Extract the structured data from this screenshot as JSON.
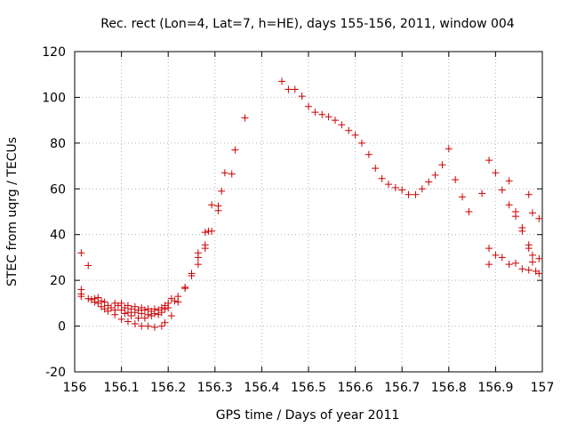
{
  "chart_data": {
    "type": "scatter",
    "title": "Rec. rect (Lon=4, Lat=7, h=HE), days 155-156, 2011, window 004",
    "xlabel": "GPS time / Days of year 2011",
    "ylabel": "STEC from uqrg / TECUs",
    "xlim": [
      156,
      157
    ],
    "ylim": [
      -20,
      120
    ],
    "x_ticks": [
      156,
      156.1,
      156.2,
      156.3,
      156.4,
      156.5,
      156.6,
      156.7,
      156.8,
      156.9,
      157
    ],
    "x_tick_labels": [
      "156",
      "156.1",
      "156.2",
      "156.3",
      "156.4",
      "156.5",
      "156.6",
      "156.7",
      "156.8",
      "156.9",
      "157"
    ],
    "y_ticks": [
      -20,
      0,
      20,
      40,
      60,
      80,
      100,
      120
    ],
    "y_tick_labels": [
      "-20",
      "0",
      "20",
      "40",
      "60",
      "80",
      "100",
      "120"
    ],
    "grid": true,
    "marker": "plus",
    "marker_color": "#cc0000",
    "points": [
      [
        156.014,
        32
      ],
      [
        156.014,
        16
      ],
      [
        156.014,
        14
      ],
      [
        156.014,
        13
      ],
      [
        156.029,
        26.5
      ],
      [
        156.029,
        12
      ],
      [
        156.036,
        11.5
      ],
      [
        156.043,
        12
      ],
      [
        156.043,
        10.5
      ],
      [
        156.05,
        12.5
      ],
      [
        156.05,
        10
      ],
      [
        156.057,
        11
      ],
      [
        156.057,
        8.5
      ],
      [
        156.064,
        10.5
      ],
      [
        156.064,
        7.5
      ],
      [
        156.071,
        9
      ],
      [
        156.071,
        6.5
      ],
      [
        156.078,
        8
      ],
      [
        156.086,
        10
      ],
      [
        156.086,
        7
      ],
      [
        156.086,
        5
      ],
      [
        156.093,
        9
      ],
      [
        156.1,
        10
      ],
      [
        156.1,
        7
      ],
      [
        156.1,
        3
      ],
      [
        156.107,
        8
      ],
      [
        156.107,
        5.5
      ],
      [
        156.114,
        9
      ],
      [
        156.114,
        6
      ],
      [
        156.114,
        2
      ],
      [
        156.121,
        7.5
      ],
      [
        156.121,
        4.5
      ],
      [
        156.129,
        8.5
      ],
      [
        156.129,
        6
      ],
      [
        156.129,
        1
      ],
      [
        156.136,
        7
      ],
      [
        156.136,
        3.5
      ],
      [
        156.143,
        8
      ],
      [
        156.143,
        5.5
      ],
      [
        156.143,
        0
      ],
      [
        156.15,
        7
      ],
      [
        156.15,
        3.5
      ],
      [
        156.157,
        7.5
      ],
      [
        156.157,
        5
      ],
      [
        156.157,
        0
      ],
      [
        156.164,
        6.5
      ],
      [
        156.164,
        4.5
      ],
      [
        156.171,
        7.5
      ],
      [
        156.171,
        5.5
      ],
      [
        156.171,
        -0.5
      ],
      [
        156.179,
        7
      ],
      [
        156.179,
        5
      ],
      [
        156.186,
        8
      ],
      [
        156.186,
        6
      ],
      [
        156.186,
        0
      ],
      [
        156.193,
        9
      ],
      [
        156.193,
        7.5
      ],
      [
        156.193,
        1.5
      ],
      [
        156.2,
        10
      ],
      [
        156.2,
        8
      ],
      [
        156.207,
        12
      ],
      [
        156.207,
        4.5
      ],
      [
        156.214,
        11
      ],
      [
        156.221,
        13
      ],
      [
        156.221,
        10.5
      ],
      [
        156.236,
        16.5
      ],
      [
        156.236,
        17
      ],
      [
        156.25,
        23
      ],
      [
        156.25,
        22
      ],
      [
        156.264,
        27
      ],
      [
        156.264,
        30
      ],
      [
        156.264,
        32
      ],
      [
        156.279,
        34
      ],
      [
        156.279,
        35.5
      ],
      [
        156.279,
        41
      ],
      [
        156.286,
        41.5
      ],
      [
        156.293,
        41.5
      ],
      [
        156.293,
        53
      ],
      [
        156.307,
        50.5
      ],
      [
        156.307,
        52.5
      ],
      [
        156.314,
        59
      ],
      [
        156.321,
        67
      ],
      [
        156.336,
        66.5
      ],
      [
        156.343,
        77
      ],
      [
        156.364,
        91
      ],
      [
        156.443,
        107
      ],
      [
        156.457,
        103.5
      ],
      [
        156.471,
        103.5
      ],
      [
        156.486,
        100.5
      ],
      [
        156.5,
        96
      ],
      [
        156.514,
        93.5
      ],
      [
        156.529,
        92.5
      ],
      [
        156.543,
        91.5
      ],
      [
        156.557,
        90
      ],
      [
        156.571,
        88
      ],
      [
        156.586,
        85.5
      ],
      [
        156.6,
        83.5
      ],
      [
        156.614,
        80
      ],
      [
        156.629,
        75
      ],
      [
        156.643,
        69
      ],
      [
        156.657,
        64.5
      ],
      [
        156.671,
        62
      ],
      [
        156.686,
        60.5
      ],
      [
        156.7,
        59.5
      ],
      [
        156.714,
        57.5
      ],
      [
        156.729,
        57.5
      ],
      [
        156.743,
        60
      ],
      [
        156.757,
        63
      ],
      [
        156.771,
        66
      ],
      [
        156.786,
        70.5
      ],
      [
        156.8,
        77.5
      ],
      [
        156.814,
        64
      ],
      [
        156.829,
        56.5
      ],
      [
        156.843,
        50
      ],
      [
        156.871,
        58
      ],
      [
        156.886,
        72.5
      ],
      [
        156.886,
        34
      ],
      [
        156.886,
        27
      ],
      [
        156.9,
        67
      ],
      [
        156.9,
        31
      ],
      [
        156.914,
        59.5
      ],
      [
        156.914,
        30
      ],
      [
        156.929,
        63.5
      ],
      [
        156.929,
        53
      ],
      [
        156.929,
        27
      ],
      [
        156.943,
        50
      ],
      [
        156.943,
        48
      ],
      [
        156.943,
        27.5
      ],
      [
        156.957,
        43
      ],
      [
        156.957,
        41.5
      ],
      [
        156.957,
        25
      ],
      [
        156.971,
        57.5
      ],
      [
        156.971,
        35.5
      ],
      [
        156.971,
        34
      ],
      [
        156.971,
        24.5
      ],
      [
        156.979,
        49.5
      ],
      [
        156.979,
        31
      ],
      [
        156.979,
        28
      ],
      [
        156.986,
        24
      ],
      [
        156.993,
        47
      ],
      [
        156.993,
        29.5
      ],
      [
        156.993,
        23
      ]
    ]
  }
}
